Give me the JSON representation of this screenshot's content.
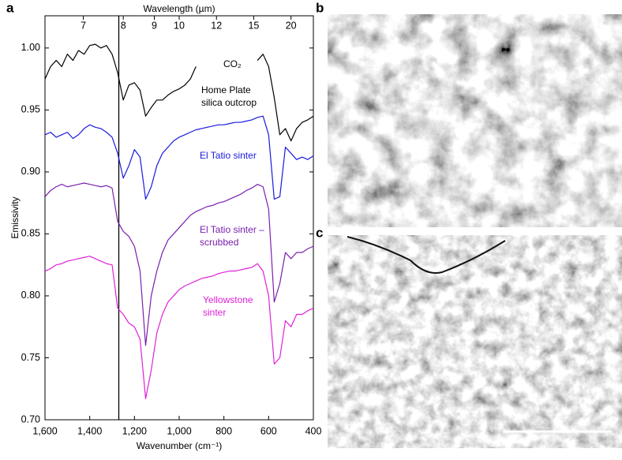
{
  "chart_data": {
    "type": "line",
    "x_label": "Wavenumber (cm⁻¹)",
    "x2_label": "Wavelength (µm)",
    "y_label": "Emissivity",
    "x": [
      1600,
      1575,
      1550,
      1525,
      1500,
      1475,
      1450,
      1425,
      1400,
      1375,
      1350,
      1325,
      1300,
      1275,
      1250,
      1225,
      1200,
      1175,
      1150,
      1125,
      1100,
      1075,
      1050,
      1025,
      1000,
      975,
      950,
      925,
      900,
      875,
      850,
      825,
      800,
      775,
      750,
      725,
      700,
      675,
      650,
      625,
      600,
      575,
      550,
      525,
      500,
      475,
      450,
      425,
      400
    ],
    "series": [
      {
        "name": "Home Plate silica outcrop",
        "color": "#000000",
        "values": [
          0.975,
          0.985,
          0.99,
          0.985,
          0.995,
          0.99,
          0.998,
          0.995,
          1.002,
          1.003,
          1.0,
          1.002,
          0.995,
          0.98,
          0.958,
          0.97,
          0.972,
          0.966,
          0.945,
          0.952,
          0.958,
          0.958,
          0.962,
          0.965,
          0.967,
          0.97,
          0.975,
          0.985,
          null,
          null,
          null,
          null,
          null,
          null,
          null,
          null,
          null,
          null,
          0.99,
          0.995,
          0.985,
          0.96,
          0.93,
          0.935,
          0.925,
          0.935,
          0.94,
          0.942,
          0.945
        ]
      },
      {
        "name": "El Tatio sinter",
        "color": "#1a1adf",
        "values": [
          0.93,
          0.932,
          0.928,
          0.93,
          0.932,
          0.927,
          0.93,
          0.935,
          0.938,
          0.936,
          0.935,
          0.932,
          0.928,
          0.915,
          0.895,
          0.905,
          0.918,
          0.912,
          0.878,
          0.888,
          0.905,
          0.915,
          0.92,
          0.925,
          0.928,
          0.93,
          0.932,
          0.934,
          0.935,
          0.936,
          0.937,
          0.938,
          0.938,
          0.939,
          0.94,
          0.94,
          0.941,
          0.942,
          0.944,
          0.945,
          0.93,
          0.878,
          0.88,
          0.92,
          0.915,
          0.91,
          0.912,
          0.91,
          0.913
        ]
      },
      {
        "name": "El Tatio sinter – scrubbed",
        "color": "#7a1fb0",
        "values": [
          0.88,
          0.885,
          0.888,
          0.89,
          0.888,
          0.889,
          0.89,
          0.891,
          0.89,
          0.889,
          0.888,
          0.889,
          0.887,
          0.86,
          0.852,
          0.848,
          0.84,
          0.82,
          0.76,
          0.8,
          0.82,
          0.835,
          0.845,
          0.85,
          0.855,
          0.86,
          0.865,
          0.868,
          0.87,
          0.872,
          0.873,
          0.875,
          0.876,
          0.878,
          0.88,
          0.882,
          0.885,
          0.887,
          0.89,
          0.888,
          0.87,
          0.795,
          0.81,
          0.835,
          0.83,
          0.835,
          0.835,
          0.838,
          0.84
        ]
      },
      {
        "name": "Yellowstone sinter",
        "color": "#e020d8",
        "values": [
          0.82,
          0.822,
          0.825,
          0.826,
          0.828,
          0.829,
          0.83,
          0.831,
          0.832,
          0.83,
          0.828,
          0.826,
          0.825,
          0.79,
          0.785,
          0.778,
          0.775,
          0.765,
          0.717,
          0.74,
          0.77,
          0.785,
          0.795,
          0.8,
          0.805,
          0.808,
          0.81,
          0.812,
          0.814,
          0.815,
          0.816,
          0.818,
          0.819,
          0.82,
          0.82,
          0.821,
          0.822,
          0.823,
          0.826,
          0.82,
          0.8,
          0.745,
          0.75,
          0.78,
          0.775,
          0.785,
          0.785,
          0.788,
          0.79
        ]
      }
    ],
    "annotations": [
      {
        "text": "CO₂"
      }
    ],
    "xlim": [
      1600,
      400
    ],
    "ylim": [
      0.7,
      1.026
    ],
    "xticks": [
      {
        "value": 1600,
        "label": "1,600"
      },
      {
        "value": 1400,
        "label": "1,400"
      },
      {
        "value": 1200,
        "label": "1,200"
      },
      {
        "value": 1000,
        "label": "1,000"
      },
      800,
      600,
      400
    ],
    "x2ticks": [
      {
        "value": 1428.57,
        "label": "7"
      },
      {
        "value": 1250,
        "label": "8"
      },
      {
        "value": 1111.11,
        "label": "9"
      },
      {
        "value": 1000,
        "label": "10"
      },
      {
        "value": 833.33,
        "label": "12"
      },
      {
        "value": 666.67,
        "label": "15"
      },
      {
        "value": 500,
        "label": "20"
      }
    ],
    "yticks": [
      {
        "value": 0.7,
        "label": "0.70"
      },
      0.75,
      {
        "value": 0.8,
        "label": "0.80"
      },
      0.85,
      {
        "value": 0.9,
        "label": "0.90"
      },
      0.95,
      {
        "value": 1.0,
        "label": "1.00"
      }
    ],
    "vline": 1270
  },
  "panel_labels": [
    "a",
    "b",
    "c"
  ]
}
